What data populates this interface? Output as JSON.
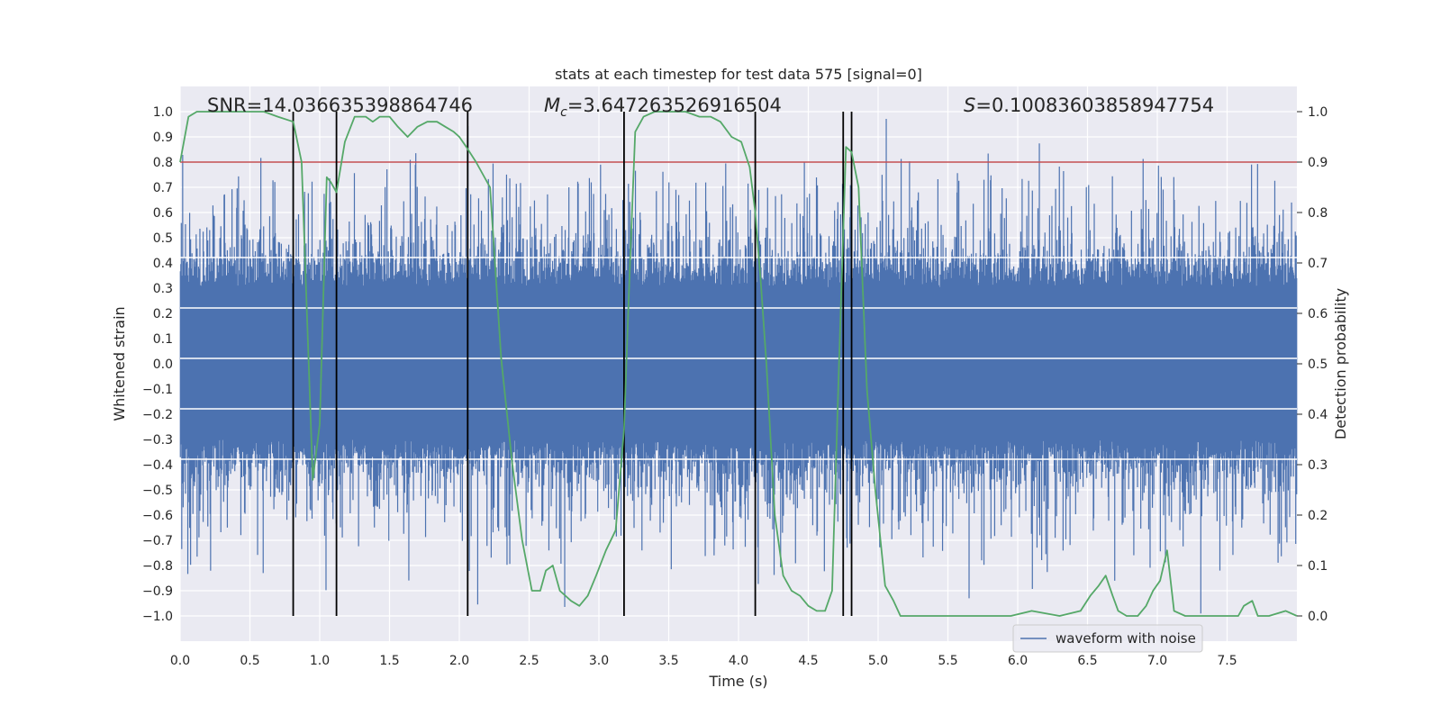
{
  "chart_data": {
    "type": "line",
    "title": "stats at each timestep for test data 575 [signal=0]",
    "xlabel": "Time (s)",
    "ylabel_left": "Whitened strain",
    "ylabel_right": "Detection probability",
    "xlim": [
      0.0,
      8.0
    ],
    "ylim_left": [
      -1.1,
      1.1
    ],
    "ylim_right": [
      -0.05,
      1.05
    ],
    "x_ticks": [
      "0.0",
      "0.5",
      "1.0",
      "1.5",
      "2.0",
      "2.5",
      "3.0",
      "3.5",
      "4.0",
      "4.5",
      "5.0",
      "5.5",
      "6.0",
      "6.5",
      "7.0",
      "7.5"
    ],
    "x_tick_values": [
      0.0,
      0.5,
      1.0,
      1.5,
      2.0,
      2.5,
      3.0,
      3.5,
      4.0,
      4.5,
      5.0,
      5.5,
      6.0,
      6.5,
      7.0,
      7.5
    ],
    "y_left_ticks": [
      "1.0",
      "0.9",
      "0.8",
      "0.7",
      "0.6",
      "0.5",
      "0.4",
      "0.3",
      "0.2",
      "0.1",
      "0.0",
      "−0.1",
      "−0.2",
      "−0.3",
      "−0.4",
      "−0.5",
      "−0.6",
      "−0.7",
      "−0.8",
      "−0.9",
      "−1.0"
    ],
    "y_left_tick_values": [
      1.0,
      0.9,
      0.8,
      0.7,
      0.6,
      0.5,
      0.4,
      0.3,
      0.2,
      0.1,
      0.0,
      -0.1,
      -0.2,
      -0.3,
      -0.4,
      -0.5,
      -0.6,
      -0.7,
      -0.8,
      -0.9,
      -1.0
    ],
    "y_right_ticks": [
      "1.0",
      "0.9",
      "0.8",
      "0.7",
      "0.6",
      "0.5",
      "0.4",
      "0.3",
      "0.2",
      "0.1",
      "0.0"
    ],
    "y_right_tick_values": [
      1.0,
      0.9,
      0.8,
      0.7,
      0.6,
      0.5,
      0.4,
      0.3,
      0.2,
      0.1,
      0.0
    ],
    "annotations": {
      "snr": "SNR=14.036635398864746",
      "mc_symbol": "M",
      "mc_sub": "c",
      "mc_value": "=3.647263526916504",
      "s_symbol": "S",
      "s_value": "=0.10083603858947754"
    },
    "legend": {
      "label": "waveform with noise",
      "placement": "lower-right"
    },
    "threshold": {
      "axis": "right",
      "value": 0.9,
      "color": "#c44e52"
    },
    "vertical_lines_x": [
      0.81,
      1.12,
      2.06,
      3.18,
      4.12,
      4.75,
      4.81
    ],
    "waveform": {
      "name": "waveform with noise",
      "color": "#4c72b0",
      "samples_shown": "dense noise, typical |amplitude| 0.3-0.5, spikes to ±1.0"
    },
    "series": [
      {
        "name": "detection probability",
        "axis": "right",
        "color": "#55a868",
        "x": [
          0.0,
          0.06,
          0.12,
          0.2,
          0.5,
          0.6,
          0.7,
          0.81,
          0.87,
          0.95,
          1.0,
          1.05,
          1.08,
          1.12,
          1.18,
          1.25,
          1.33,
          1.38,
          1.43,
          1.5,
          1.56,
          1.63,
          1.7,
          1.77,
          1.84,
          1.9,
          1.96,
          2.0,
          2.05,
          2.12,
          2.22,
          2.3,
          2.38,
          2.45,
          2.52,
          2.58,
          2.62,
          2.67,
          2.72,
          2.8,
          2.86,
          2.92,
          2.98,
          3.05,
          3.12,
          3.18,
          3.22,
          3.26,
          3.32,
          3.4,
          3.5,
          3.62,
          3.72,
          3.8,
          3.87,
          3.95,
          4.02,
          4.08,
          4.12,
          4.16,
          4.2,
          4.26,
          4.32,
          4.38,
          4.44,
          4.5,
          4.56,
          4.62,
          4.67,
          4.72,
          4.77,
          4.81,
          4.86,
          4.92,
          4.98,
          5.05,
          5.11,
          5.16,
          5.2,
          5.3,
          5.4,
          5.5,
          5.8,
          5.95,
          6.1,
          6.3,
          6.45,
          6.52,
          6.58,
          6.63,
          6.68,
          6.72,
          6.78,
          6.86,
          6.92,
          6.97,
          7.02,
          7.07,
          7.12,
          7.2,
          7.3,
          7.5,
          7.58,
          7.62,
          7.68,
          7.72,
          7.8,
          7.92,
          8.0
        ],
        "y": [
          0.9,
          0.99,
          1.0,
          1.0,
          1.0,
          1.0,
          0.99,
          0.98,
          0.9,
          0.27,
          0.38,
          0.87,
          0.86,
          0.84,
          0.94,
          0.99,
          0.99,
          0.98,
          0.99,
          0.99,
          0.97,
          0.95,
          0.97,
          0.98,
          0.98,
          0.97,
          0.96,
          0.95,
          0.93,
          0.9,
          0.85,
          0.51,
          0.3,
          0.15,
          0.05,
          0.05,
          0.09,
          0.1,
          0.05,
          0.03,
          0.02,
          0.04,
          0.08,
          0.13,
          0.17,
          0.37,
          0.68,
          0.96,
          0.99,
          1.0,
          1.0,
          1.0,
          0.99,
          0.99,
          0.98,
          0.95,
          0.94,
          0.89,
          0.8,
          0.66,
          0.5,
          0.2,
          0.08,
          0.05,
          0.04,
          0.02,
          0.01,
          0.01,
          0.05,
          0.5,
          0.93,
          0.92,
          0.85,
          0.45,
          0.25,
          0.06,
          0.03,
          0.0,
          0.0,
          0.0,
          0.0,
          0.0,
          0.0,
          0.0,
          0.01,
          0.0,
          0.01,
          0.04,
          0.06,
          0.08,
          0.04,
          0.01,
          0.0,
          0.0,
          0.02,
          0.05,
          0.07,
          0.13,
          0.01,
          0.0,
          0.0,
          0.0,
          0.0,
          0.02,
          0.03,
          0.0,
          0.0,
          0.01,
          0.0
        ]
      }
    ]
  }
}
